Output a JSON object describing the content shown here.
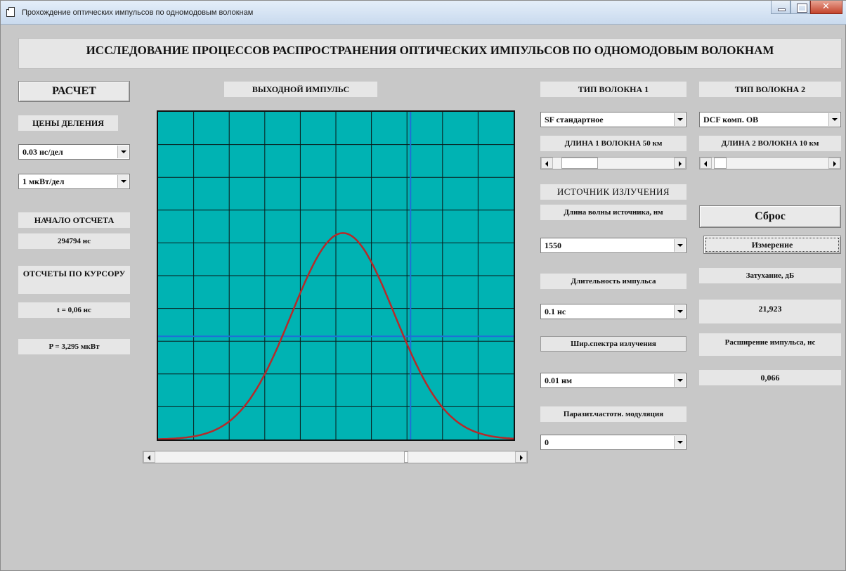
{
  "window": {
    "title": "Прохождение оптических импульсов по одномодовым волокнам"
  },
  "header": {
    "title": "ИССЛЕДОВАНИЕ ПРОЦЕССОВ РАСПРОСТРАНЕНИЯ ОПТИЧЕСКИХ ИМПУЛЬСОВ ПО ОДНОМОДОВЫМ ВОЛОКНАМ"
  },
  "left": {
    "calc_button": "РАСЧЕТ",
    "divisions_label": "ЦЕНЫ ДЕЛЕНИЯ",
    "time_div": "0.03 нс/дел",
    "power_div": "1 мкВт/дел",
    "origin_label": "НАЧАЛО ОТСЧЕТА",
    "origin_value": "294794 нс",
    "cursor_label": "ОТСЧЕТЫ ПО КУРСОРУ",
    "cursor_t": "t = 0,06 нс",
    "cursor_p": "P = 3,295 мкВт"
  },
  "plot": {
    "title": "ВЫХОДНОЙ ИМПУЛЬС",
    "grid_cols": 10,
    "grid_rows": 10,
    "cursor_x": 0.71,
    "cursor_y": 0.685,
    "scroll_position": 0.7,
    "colors": {
      "background": "#00b3b3",
      "grid": "#0a1a1a",
      "cursor": "#1f6fd6",
      "pulse": "#b52a2a"
    }
  },
  "chart_data": {
    "type": "line",
    "title": "ВЫХОДНОЙ ИМПУЛЬС",
    "xlabel": "",
    "ylabel": "",
    "xlim": [
      0,
      10
    ],
    "ylim": [
      0,
      10
    ],
    "grid": true,
    "series": [
      {
        "shape": "gaussian",
        "center": 5.2,
        "sigma": 1.45,
        "peak": 6.3
      }
    ]
  },
  "middle": {
    "fiber1_label": "ТИП ВОЛОКНА 1",
    "fiber1_type": "SF стандартное",
    "length1_label": "ДЛИНА 1 ВОЛОКНА 50 км",
    "length1_fraction": 0.1,
    "source_label": "ИСТОЧНИК ИЗЛУЧЕНИЯ",
    "wavelength_label": "Длина волны источника, нм",
    "wavelength": "1550",
    "duration_label": "Длительность импульса",
    "duration": "0.1 нс",
    "spectrum_label": "Шир.спектра излучения",
    "spectrum": "0.01 нм",
    "chirp_label": "Паразит.частотн. модуляция",
    "chirp": "0"
  },
  "right": {
    "fiber2_label": "ТИП ВОЛОКНА 2",
    "fiber2_type": "DCF комп. ОВ",
    "length2_label": "ДЛИНА 2 ВОЛОКНА 10 км",
    "length2_fraction": 0.02,
    "reset_button": "Сброс",
    "measure_button": "Измерение",
    "attenuation_label": "Затухание, дБ",
    "attenuation_value": "21,923",
    "broadening_label": "Расширение импульса, нс",
    "broadening_value": "0,066"
  }
}
